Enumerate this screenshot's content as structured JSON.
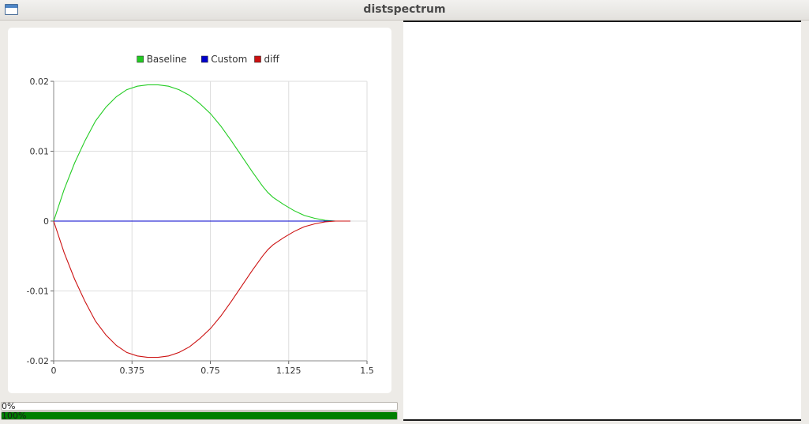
{
  "window": {
    "title": "distspectrum"
  },
  "chart_data": {
    "type": "line",
    "xlim": [
      0,
      1.5
    ],
    "ylim": [
      -0.02,
      0.02
    ],
    "xticks": [
      "0",
      "0.375",
      "0.75",
      "1.125",
      "1.5"
    ],
    "yticks": [
      "0.02",
      "0.01",
      "0",
      "-0.01",
      "-0.02"
    ],
    "grid": true,
    "legend_position": "top-center",
    "series": [
      {
        "name": "Baseline",
        "color": "#22cc22",
        "x": [
          0,
          0.05,
          0.1,
          0.15,
          0.2,
          0.25,
          0.3,
          0.35,
          0.4,
          0.45,
          0.5,
          0.55,
          0.6,
          0.65,
          0.7,
          0.75,
          0.8,
          0.85,
          0.9,
          0.95,
          1.0,
          1.025,
          1.05,
          1.1,
          1.15,
          1.2,
          1.25,
          1.3,
          1.35,
          1.42
        ],
        "y": [
          0,
          0.0045,
          0.0083,
          0.0115,
          0.0143,
          0.0163,
          0.0178,
          0.0188,
          0.0193,
          0.0195,
          0.0195,
          0.0193,
          0.0188,
          0.018,
          0.0168,
          0.0154,
          0.0136,
          0.0115,
          0.0093,
          0.0071,
          0.005,
          0.0041,
          0.0034,
          0.0024,
          0.0015,
          0.0008,
          0.0004,
          0.0001,
          0.0,
          0.0
        ]
      },
      {
        "name": "Custom",
        "color": "#0000cc",
        "x": [
          0,
          1.42
        ],
        "y": [
          0,
          0
        ]
      },
      {
        "name": "diff",
        "color": "#cc1111",
        "x": [
          0,
          0.05,
          0.1,
          0.15,
          0.2,
          0.25,
          0.3,
          0.35,
          0.4,
          0.45,
          0.5,
          0.55,
          0.6,
          0.65,
          0.7,
          0.75,
          0.8,
          0.85,
          0.9,
          0.95,
          1.0,
          1.025,
          1.05,
          1.1,
          1.15,
          1.2,
          1.25,
          1.3,
          1.35,
          1.42
        ],
        "y": [
          0,
          -0.0045,
          -0.0083,
          -0.0115,
          -0.0143,
          -0.0163,
          -0.0178,
          -0.0188,
          -0.0193,
          -0.0195,
          -0.0195,
          -0.0193,
          -0.0188,
          -0.018,
          -0.0168,
          -0.0154,
          -0.0136,
          -0.0115,
          -0.0093,
          -0.0071,
          -0.005,
          -0.0041,
          -0.0034,
          -0.0024,
          -0.0015,
          -0.0008,
          -0.0004,
          -0.0001,
          0.0,
          0.0
        ]
      }
    ]
  },
  "progress_bars": [
    {
      "label": "0%",
      "fraction": 0.0
    },
    {
      "label": "100%",
      "fraction": 1.0
    }
  ]
}
